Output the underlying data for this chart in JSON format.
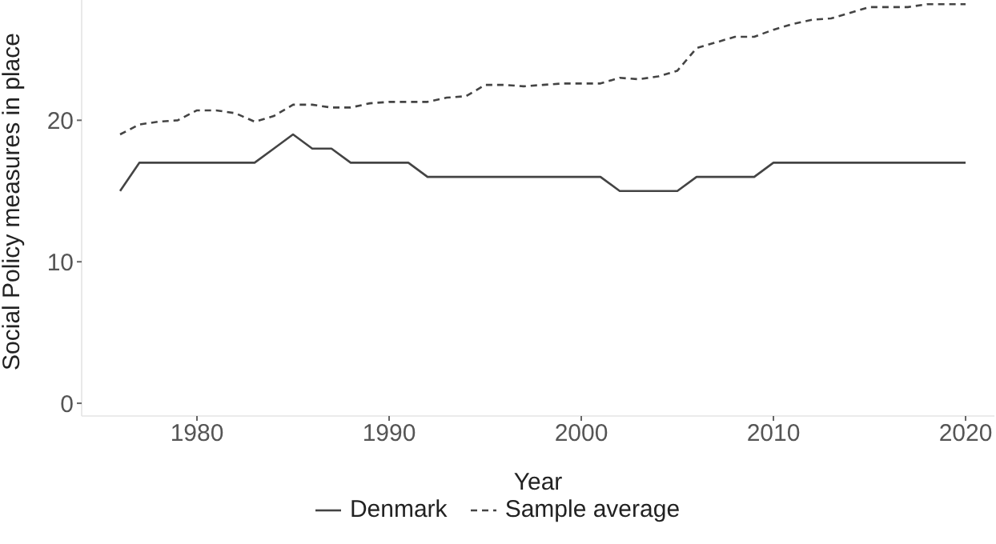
{
  "chart_data": {
    "type": "line",
    "xlabel": "Year",
    "ylabel": "Social Policy measures in place",
    "x": [
      1976,
      1977,
      1978,
      1979,
      1980,
      1981,
      1982,
      1983,
      1984,
      1985,
      1986,
      1987,
      1988,
      1989,
      1990,
      1991,
      1992,
      1993,
      1994,
      1995,
      1996,
      1997,
      1998,
      1999,
      2000,
      2001,
      2002,
      2003,
      2004,
      2005,
      2006,
      2007,
      2008,
      2009,
      2010,
      2011,
      2012,
      2013,
      2014,
      2015,
      2016,
      2017,
      2018,
      2019,
      2020
    ],
    "series": [
      {
        "name": "Denmark",
        "color": "#444444",
        "line_style": "solid",
        "values": [
          15,
          17,
          17,
          17,
          17,
          17,
          17,
          17,
          18,
          19,
          18,
          18,
          17,
          17,
          17,
          17,
          16,
          16,
          16,
          16,
          16,
          16,
          16,
          16,
          16,
          16,
          15,
          15,
          15,
          15,
          16,
          16,
          16,
          16,
          17,
          17,
          17,
          17,
          17,
          17,
          17,
          17,
          17,
          17,
          17
        ]
      },
      {
        "name": "Sample average",
        "color": "#444444",
        "line_style": "dashed",
        "values": [
          19.0,
          19.7,
          19.9,
          20.0,
          20.7,
          20.7,
          20.5,
          19.9,
          20.3,
          21.1,
          21.1,
          20.9,
          20.9,
          21.2,
          21.3,
          21.3,
          21.3,
          21.6,
          21.7,
          22.5,
          22.5,
          22.4,
          22.5,
          22.6,
          22.6,
          22.6,
          23.0,
          22.9,
          23.1,
          23.5,
          25.1,
          25.5,
          25.9,
          25.9,
          26.4,
          26.8,
          27.1,
          27.2,
          27.6,
          28.0,
          28.0,
          28.0,
          28.2,
          28.2,
          28.2
        ]
      }
    ],
    "xlim": [
      1974,
      2021.5
    ],
    "xticks": [
      1980,
      1990,
      2000,
      2010,
      2020
    ],
    "ylim": [
      -0.9,
      28.5
    ],
    "yticks": [
      0,
      10,
      20
    ],
    "grid": false,
    "legend": "bottom",
    "marker": "none"
  }
}
